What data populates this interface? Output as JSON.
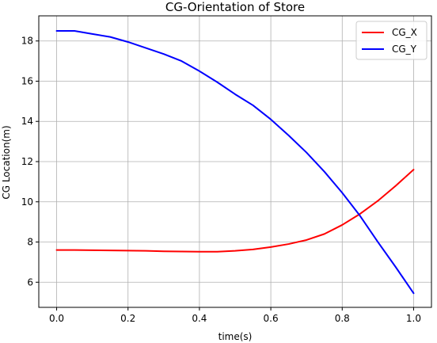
{
  "chart_data": {
    "type": "line",
    "title": "CG-Orientation of Store",
    "xlabel": "time(s)",
    "ylabel": "CG Location(m)",
    "xlim": [
      -0.05,
      1.05
    ],
    "ylim": [
      4.75,
      19.25
    ],
    "x_ticks": [
      0.0,
      0.2,
      0.4,
      0.6,
      0.8,
      1.0
    ],
    "y_ticks": [
      6,
      8,
      10,
      12,
      14,
      16,
      18
    ],
    "x_tick_labels": [
      "0.0",
      "0.2",
      "0.4",
      "0.6",
      "0.8",
      "1.0"
    ],
    "y_tick_labels": [
      "6",
      "8",
      "10",
      "12",
      "14",
      "16",
      "18"
    ],
    "grid": true,
    "legend_position": "top-right",
    "series": [
      {
        "name": "CG_X",
        "color": "#ff0000",
        "points": [
          [
            0.0,
            7.6
          ],
          [
            0.05,
            7.6
          ],
          [
            0.1,
            7.59
          ],
          [
            0.15,
            7.58
          ],
          [
            0.2,
            7.57
          ],
          [
            0.25,
            7.56
          ],
          [
            0.3,
            7.54
          ],
          [
            0.35,
            7.53
          ],
          [
            0.4,
            7.52
          ],
          [
            0.45,
            7.52
          ],
          [
            0.5,
            7.56
          ],
          [
            0.55,
            7.63
          ],
          [
            0.6,
            7.75
          ],
          [
            0.65,
            7.9
          ],
          [
            0.7,
            8.1
          ],
          [
            0.75,
            8.4
          ],
          [
            0.8,
            8.85
          ],
          [
            0.85,
            9.4
          ],
          [
            0.9,
            10.05
          ],
          [
            0.95,
            10.8
          ],
          [
            1.0,
            11.6
          ]
        ]
      },
      {
        "name": "CG_Y",
        "color": "#0000ff",
        "points": [
          [
            0.0,
            18.5
          ],
          [
            0.05,
            18.5
          ],
          [
            0.1,
            18.35
          ],
          [
            0.15,
            18.2
          ],
          [
            0.2,
            17.95
          ],
          [
            0.25,
            17.65
          ],
          [
            0.3,
            17.35
          ],
          [
            0.35,
            17.0
          ],
          [
            0.4,
            16.5
          ],
          [
            0.45,
            15.95
          ],
          [
            0.5,
            15.35
          ],
          [
            0.55,
            14.8
          ],
          [
            0.6,
            14.1
          ],
          [
            0.65,
            13.3
          ],
          [
            0.7,
            12.45
          ],
          [
            0.75,
            11.5
          ],
          [
            0.8,
            10.45
          ],
          [
            0.85,
            9.3
          ],
          [
            0.9,
            8.0
          ],
          [
            0.95,
            6.75
          ],
          [
            1.0,
            5.45
          ]
        ]
      }
    ]
  }
}
